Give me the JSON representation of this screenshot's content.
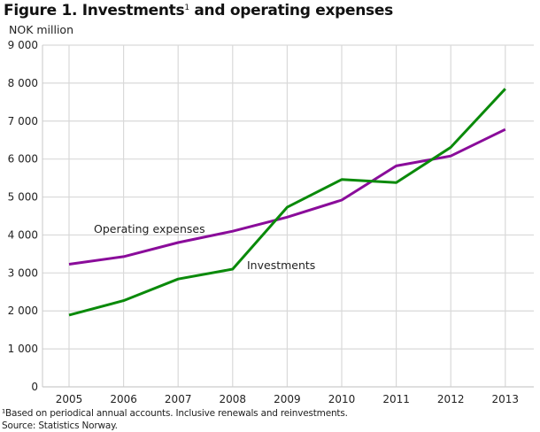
{
  "figure": {
    "title_main": "Figure 1. Investments",
    "title_sup": "1",
    "title_rest": " and operating expenses",
    "footnote": "¹Based on periodical annual accounts. Inclusive renewals and reinvestments.",
    "source": "Source: Statistics Norway."
  },
  "chart_data": {
    "type": "line",
    "title": "Figure 1. Investments¹ and operating expenses",
    "xlabel": "",
    "ylabel": "NOK million",
    "x": [
      "2005",
      "2006",
      "2007",
      "2008",
      "2009",
      "2010",
      "2011",
      "2012",
      "2013"
    ],
    "ylim": [
      0,
      9000
    ],
    "yticks": [
      0,
      1000,
      2000,
      3000,
      4000,
      5000,
      6000,
      7000,
      8000,
      9000
    ],
    "ytick_labels": [
      "0",
      "1 000",
      "2 000",
      "3 000",
      "4 000",
      "5 000",
      "6 000",
      "7 000",
      "8 000",
      "9 000"
    ],
    "grid": true,
    "legend": "inline labels",
    "series": [
      {
        "name": "Operating expenses",
        "color": "#8a0c9a",
        "values": [
          3230,
          3430,
          3800,
          4100,
          4470,
          4920,
          5820,
          6080,
          6780
        ]
      },
      {
        "name": "Investments",
        "color": "#0a8a0a",
        "values": [
          1890,
          2270,
          2840,
          3100,
          4730,
          5460,
          5380,
          6310,
          7850
        ]
      }
    ]
  }
}
